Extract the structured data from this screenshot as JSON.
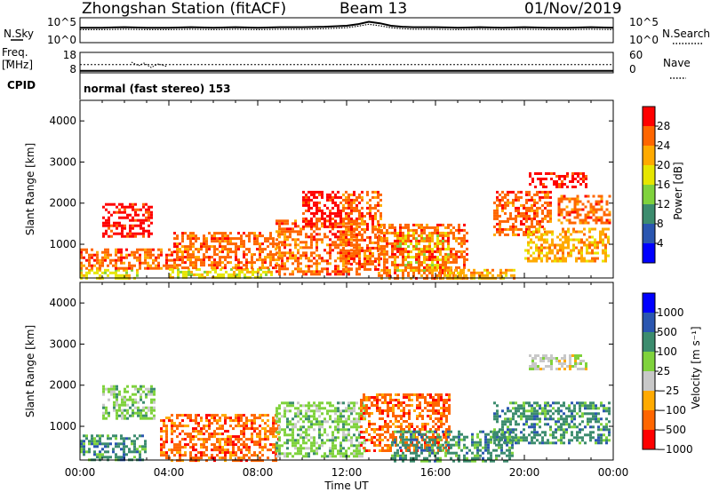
{
  "header": {
    "station": "Zhongshan Station (fitACF)",
    "beam": "Beam 13",
    "date": "01/Nov/2019"
  },
  "left_labels": {
    "nsky": "N.Sky",
    "freq": "Freq.",
    "freq_unit": "[MHz]",
    "cpid": "CPID"
  },
  "right_labels": {
    "nsearch": "N.Search",
    "nave": "Nave"
  },
  "cpid_text": "normal (fast stereo) 153",
  "chart_data": [
    {
      "type": "line",
      "name": "noise",
      "left_ticks": [
        "10^5",
        "10^0"
      ],
      "right_ticks": [
        "10^5",
        "10^0"
      ],
      "x": [
        0,
        1,
        2,
        3,
        4,
        5,
        6,
        7,
        8,
        9,
        10,
        11,
        12,
        12.5,
        13,
        13.5,
        14,
        14.5,
        15,
        16,
        17,
        18,
        19,
        20,
        21,
        22,
        23,
        24
      ],
      "series": [
        {
          "values": [
            3.0,
            3.0,
            3.1,
            3.0,
            3.0,
            3.1,
            3.0,
            3.1,
            3.0,
            3.1,
            3.1,
            3.2,
            3.4,
            3.7,
            4.2,
            3.9,
            3.4,
            3.2,
            3.1,
            3.1,
            3.0,
            3.1,
            3.0,
            3.1,
            3.0,
            3.0,
            3.1,
            3.0
          ]
        },
        {
          "values": [
            2.6,
            2.6,
            2.7,
            2.6,
            2.6,
            2.7,
            2.6,
            2.7,
            2.6,
            2.7,
            2.7,
            2.8,
            3.0,
            3.3,
            3.7,
            3.4,
            3.0,
            2.8,
            2.7,
            2.7,
            2.6,
            2.7,
            2.6,
            2.7,
            2.6,
            2.6,
            2.7,
            2.6
          ]
        }
      ]
    },
    {
      "type": "line",
      "name": "frequency",
      "left_ticks": [
        "18",
        "8"
      ],
      "right_ticks": [
        "60",
        "0"
      ],
      "x": [
        0,
        24
      ],
      "series": [
        {
          "values": [
            12,
            12
          ]
        },
        {
          "values": [
            9,
            9
          ]
        }
      ]
    },
    {
      "type": "heatmap",
      "name": "power",
      "xlabel": "",
      "ylabel": "Slant Range [km]",
      "xlim": [
        0,
        24
      ],
      "ylim": [
        180,
        4500
      ],
      "y_ticks": [
        1000,
        2000,
        3000,
        4000
      ],
      "colorbar_label": "Power [dB]",
      "colorbar_ticks": [
        "28",
        "24",
        "20",
        "16",
        "12",
        "8",
        "4"
      ],
      "colorbar_colors": [
        "#ff0000",
        "#ff6600",
        "#ffaa00",
        "#e6e600",
        "#7fd23c",
        "#3c8c6e",
        "#2a56b0",
        "#0000ff"
      ],
      "regions": [
        {
          "x": [
            0.0,
            2.6
          ],
          "y": [
            180,
            400
          ],
          "level": 3
        },
        {
          "x": [
            0.0,
            4.2
          ],
          "y": [
            400,
            900
          ],
          "level": 1
        },
        {
          "x": [
            1.0,
            3.2
          ],
          "y": [
            1200,
            2000
          ],
          "level": 0
        },
        {
          "x": [
            4.0,
            8.6
          ],
          "y": [
            180,
            420
          ],
          "level": 3
        },
        {
          "x": [
            4.2,
            9.0
          ],
          "y": [
            420,
            1300
          ],
          "level": 1
        },
        {
          "x": [
            8.8,
            12.6
          ],
          "y": [
            300,
            1600
          ],
          "level": 1
        },
        {
          "x": [
            10.0,
            11.8
          ],
          "y": [
            1400,
            2300
          ],
          "level": 0
        },
        {
          "x": [
            11.8,
            13.6
          ],
          "y": [
            400,
            2300
          ],
          "level": 1
        },
        {
          "x": [
            14.0,
            16.6
          ],
          "y": [
            350,
            1300
          ],
          "level": 3
        },
        {
          "x": [
            13.4,
            17.4
          ],
          "y": [
            200,
            1500
          ],
          "level": 1
        },
        {
          "x": [
            16.0,
            19.5
          ],
          "y": [
            180,
            400
          ],
          "level": 2
        },
        {
          "x": [
            18.6,
            21.2
          ],
          "y": [
            1200,
            2300
          ],
          "level": 1
        },
        {
          "x": [
            20.0,
            23.8
          ],
          "y": [
            600,
            1400
          ],
          "level": 2
        },
        {
          "x": [
            21.5,
            23.8
          ],
          "y": [
            1500,
            2200
          ],
          "level": 1
        },
        {
          "x": [
            20.2,
            22.8
          ],
          "y": [
            2400,
            2750
          ],
          "level": 0
        }
      ]
    },
    {
      "type": "heatmap",
      "name": "velocity",
      "xlabel": "Time UT",
      "ylabel": "Slant Range [km]",
      "xlim": [
        0,
        24
      ],
      "ylim": [
        180,
        4500
      ],
      "x_ticks": [
        "00:00",
        "04:00",
        "08:00",
        "12:00",
        "16:00",
        "20:00",
        "00:00"
      ],
      "y_ticks": [
        1000,
        2000,
        3000,
        4000
      ],
      "colorbar_label": "Velocity [m s⁻¹]",
      "colorbar_ticks": [
        "1000",
        "500",
        "100",
        "25",
        "−25",
        "−100",
        "−500",
        "−1000"
      ],
      "colorbar_colors": [
        "#0000ff",
        "#2a56b0",
        "#3c8c6e",
        "#7fd23c",
        "#c8c8c8",
        "#ffaa00",
        "#ff6600",
        "#ff0000"
      ],
      "regions": [
        {
          "x": [
            0.0,
            3.0
          ],
          "y": [
            180,
            800
          ],
          "level": 2
        },
        {
          "x": [
            1.0,
            3.4
          ],
          "y": [
            1200,
            2000
          ],
          "level": 3
        },
        {
          "x": [
            3.6,
            9.0
          ],
          "y": [
            180,
            1300
          ],
          "level": 6
        },
        {
          "x": [
            8.8,
            12.8
          ],
          "y": [
            300,
            1600
          ],
          "level": 3
        },
        {
          "x": [
            12.6,
            16.6
          ],
          "y": [
            400,
            1800
          ],
          "level": 6
        },
        {
          "x": [
            14.0,
            19.5
          ],
          "y": [
            180,
            900
          ],
          "level": 2
        },
        {
          "x": [
            18.6,
            23.8
          ],
          "y": [
            600,
            1600
          ],
          "level": 2
        },
        {
          "x": [
            20.2,
            22.8
          ],
          "y": [
            2400,
            2750
          ],
          "level": 4
        }
      ]
    }
  ]
}
